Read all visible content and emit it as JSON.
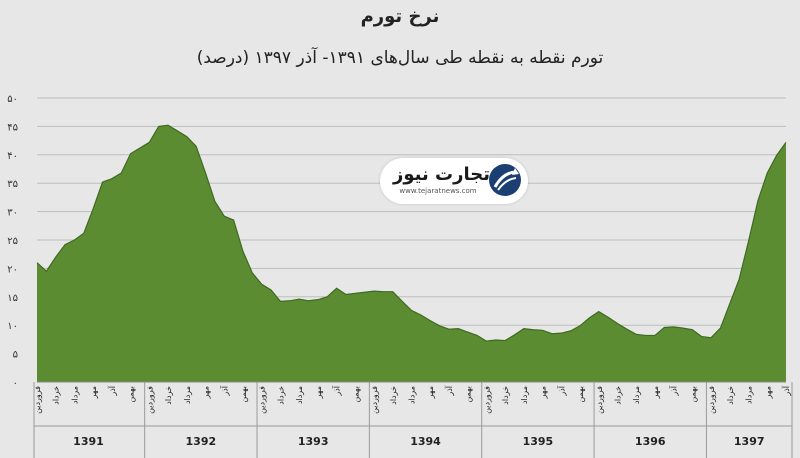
{
  "chart_data": {
    "type": "area",
    "title": "نرخ تورم",
    "subtitle": "تورم نقطه به نقطه طی سال‌های ۱۳۹۱- آذر ۱۳۹۷ (درصد)",
    "ylim": [
      0,
      50
    ],
    "y_ticks": [
      "۰",
      "۵",
      "۱۰",
      "۱۵",
      "۲۰",
      "۲۵",
      "۳۰",
      "۳۵",
      "۴۰",
      "۴۵",
      "۵۰"
    ],
    "years": [
      "1391",
      "1392",
      "1393",
      "1394",
      "1395",
      "1396",
      "1397"
    ],
    "month_labels": [
      "فروردین",
      "خرداد",
      "مرداد",
      "مهر",
      "آذر",
      "بهمن"
    ],
    "last_year_month_labels": [
      "فروردین",
      "خرداد",
      "مرداد",
      "مهر",
      "آذر"
    ],
    "values": [
      21,
      19.5,
      22,
      24.2,
      25,
      26.2,
      30.5,
      35.2,
      35.8,
      36.8,
      40.2,
      41.2,
      42.2,
      45,
      45.2,
      44.2,
      43.2,
      41.5,
      36.8,
      31.8,
      29.2,
      28.5,
      23,
      19.2,
      17.2,
      16.2,
      14.2,
      14.3,
      14.6,
      14.3,
      14.5,
      15,
      16.5,
      15.4,
      15.6,
      15.8,
      16,
      15.9,
      15.9,
      14.2,
      12.6,
      11.8,
      10.8,
      9.9,
      9.3,
      9.4,
      8.8,
      8.2,
      7.2,
      7.4,
      7.3,
      8.3,
      9.4,
      9.2,
      9.1,
      8.5,
      8.6,
      9,
      9.9,
      11.3,
      12.4,
      11.4,
      10.3,
      9.3,
      8.4,
      8.2,
      8.2,
      9.6,
      9.7,
      9.5,
      9.2,
      8,
      7.8,
      9.5,
      13.8,
      18.1,
      24.8,
      31.9,
      36.8,
      39.9,
      42.2
    ],
    "fill_color": "#5b8c32",
    "stroke_color": "#3f6a22",
    "grid": true
  },
  "watermark": {
    "name": "تجارت نیوز",
    "url": "www.tejaratnews.com"
  }
}
